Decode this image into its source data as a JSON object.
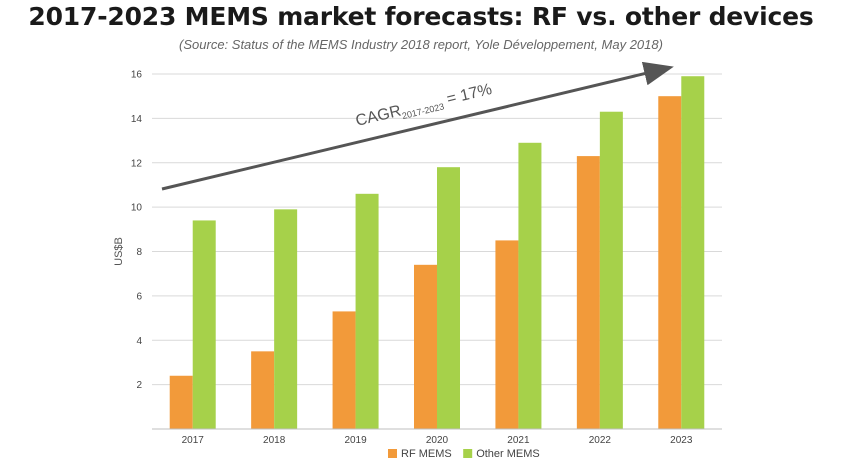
{
  "title": "2017-2023 MEMS market forecasts: RF vs. other devices",
  "subtitle": "(Source: Status of the MEMS Industry 2018 report, Yole Développement, May 2018)",
  "chart_data": {
    "type": "bar",
    "categories": [
      "2017",
      "2018",
      "2019",
      "2020",
      "2021",
      "2022",
      "2023"
    ],
    "series": [
      {
        "name": "RF MEMS",
        "color": "#f29a3a",
        "values": [
          2.4,
          3.5,
          5.3,
          7.4,
          8.5,
          12.3,
          15.0
        ]
      },
      {
        "name": "Other MEMS",
        "color": "#a6d14a",
        "values": [
          9.4,
          9.9,
          10.6,
          11.8,
          12.9,
          14.3,
          15.9
        ]
      }
    ],
    "ylabel": "US$B",
    "xlabel": "",
    "ylim": [
      0,
      16
    ],
    "yticks": [
      2,
      4,
      6,
      8,
      10,
      12,
      14,
      16
    ],
    "grid": true,
    "legend_position": "bottom",
    "annotation": {
      "prefix": "CAGR",
      "subscript": "2017-2023",
      "suffix": " = 17%"
    }
  }
}
